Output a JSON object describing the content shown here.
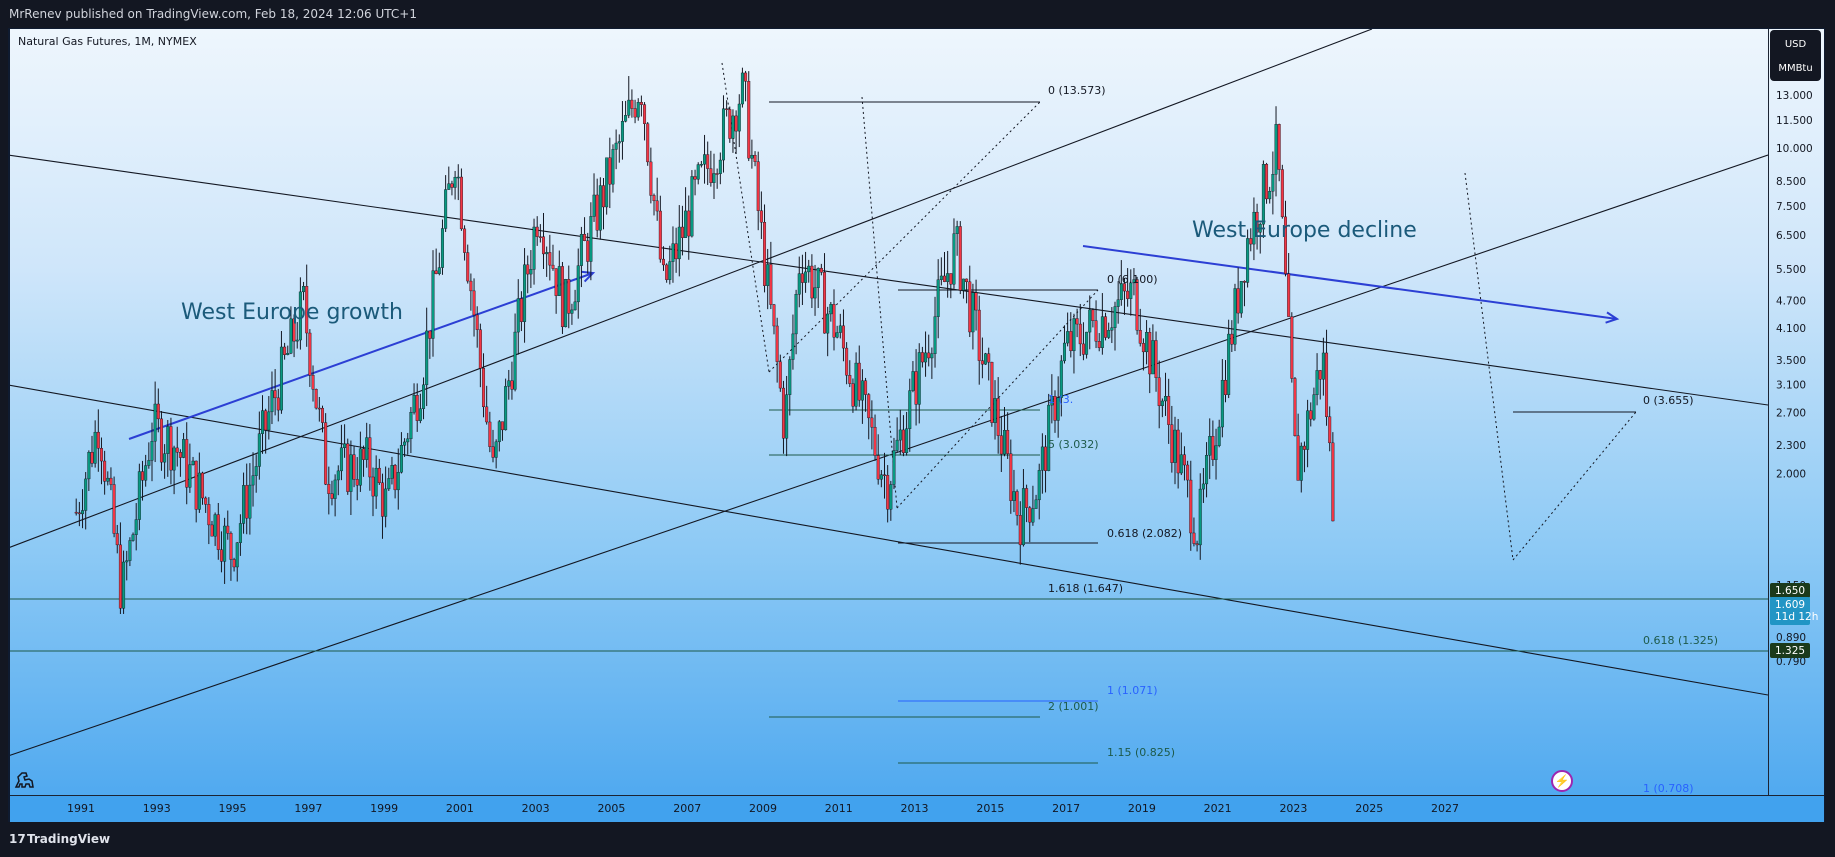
{
  "header": {
    "published": "MrRenev published on TradingView.com, Feb 18, 2024 12:06 UTC+1"
  },
  "footer": {
    "brand": "TradingView",
    "brand_icon": "tradingview-logo-icon"
  },
  "symbol": {
    "label": "Natural Gas Futures, 1M, NYMEX"
  },
  "unit": {
    "currency": "USD",
    "unit": "MMBtu"
  },
  "annotations": {
    "growth": "West Europe growth",
    "decline": "West Europe decline"
  },
  "price_axis": {
    "ticks": [
      "13.000",
      "11.500",
      "10.000",
      "8.500",
      "7.500",
      "6.500",
      "5.500",
      "4.700",
      "4.100",
      "3.500",
      "3.100",
      "2.700",
      "2.300",
      "2.000",
      "1.650",
      "1.609",
      "11d 12h",
      "1.325",
      "1.150",
      "1.010",
      "0.890",
      "0.790"
    ],
    "labels": {
      "price_high": "1.650",
      "price_current": "1.609",
      "countdown": "11d 12h",
      "price_low": "1.325"
    },
    "colors": {
      "price_high_bg": "#1b3a1b",
      "price_current_bg": "#2195c5",
      "price_low_bg": "#1b3a1b"
    }
  },
  "time_axis": {
    "ticks": [
      "1991",
      "1993",
      "1995",
      "1997",
      "1999",
      "2001",
      "2003",
      "2005",
      "2007",
      "2009",
      "2011",
      "2013",
      "2015",
      "2017",
      "2019",
      "2021",
      "2023",
      "2025",
      "2027"
    ]
  },
  "fib_labels": {
    "a0": "0 (13.573)",
    "b0": "0 (6.100)",
    "b1": "1 (3.",
    "b2": "5 (3.032)",
    "b618": "0.618 (2.082)",
    "b1618": "1.618 (1.647)",
    "b_1": "1 (1.071)",
    "b_2": "2 (1.001)",
    "b_115": "1.15 (0.825)",
    "c0": "0 (3.655)",
    "c618": "0.618 (1.325)",
    "c1": "1 (0.708)"
  },
  "icons": {
    "dino": "dino-icon",
    "bolt": "lightning-icon"
  },
  "chart_data": {
    "type": "candlestick",
    "title": "Natural Gas Futures, 1M, NYMEX",
    "xlabel": "",
    "ylabel": "",
    "x_range": [
      1990,
      2028
    ],
    "y_scale": "log",
    "ylim": [
      0.75,
      14.5
    ],
    "up_color": "#089981",
    "down_color": "#f23645",
    "grid": false,
    "series_ohlc_anchor_points": [
      {
        "x": 1990.9,
        "y": 1.65
      },
      {
        "x": 1991.5,
        "y": 2.6
      },
      {
        "x": 1992.1,
        "y": 1.1
      },
      {
        "x": 1992.9,
        "y": 2.5
      },
      {
        "x": 1993.5,
        "y": 2.3
      },
      {
        "x": 1995.0,
        "y": 1.35
      },
      {
        "x": 1996.0,
        "y": 2.7
      },
      {
        "x": 1996.9,
        "y": 4.6
      },
      {
        "x": 1997.5,
        "y": 2.0
      },
      {
        "x": 1998.6,
        "y": 2.1
      },
      {
        "x": 1999.1,
        "y": 1.7
      },
      {
        "x": 2000.0,
        "y": 3.2
      },
      {
        "x": 2000.9,
        "y": 9.8
      },
      {
        "x": 2001.9,
        "y": 2.0
      },
      {
        "x": 2003.1,
        "y": 7.5
      },
      {
        "x": 2003.8,
        "y": 4.5
      },
      {
        "x": 2005.8,
        "y": 14.0
      },
      {
        "x": 2006.4,
        "y": 5.0
      },
      {
        "x": 2007.2,
        "y": 7.8
      },
      {
        "x": 2008.5,
        "y": 13.5
      },
      {
        "x": 2009.6,
        "y": 2.5
      },
      {
        "x": 2010.0,
        "y": 5.9
      },
      {
        "x": 2011.0,
        "y": 4.0
      },
      {
        "x": 2012.3,
        "y": 1.9
      },
      {
        "x": 2014.1,
        "y": 6.2
      },
      {
        "x": 2015.8,
        "y": 1.6
      },
      {
        "x": 2016.3,
        "y": 1.9
      },
      {
        "x": 2017.0,
        "y": 3.7
      },
      {
        "x": 2018.8,
        "y": 4.9
      },
      {
        "x": 2020.5,
        "y": 1.5
      },
      {
        "x": 2021.8,
        "y": 6.3
      },
      {
        "x": 2022.6,
        "y": 10.0
      },
      {
        "x": 2023.1,
        "y": 2.0
      },
      {
        "x": 2023.8,
        "y": 3.6
      },
      {
        "x": 2024.1,
        "y": 1.609
      }
    ],
    "fib_levels": [
      {
        "label": "0 (13.573)",
        "value": 13.573
      },
      {
        "label": "0 (6.100)",
        "value": 6.1
      },
      {
        "label": "5 (3.032)",
        "value": 3.032
      },
      {
        "label": "0.618 (2.082)",
        "value": 2.082
      },
      {
        "label": "1.618 (1.647)",
        "value": 1.647
      },
      {
        "label": "1 (1.071)",
        "value": 1.071
      },
      {
        "label": "2 (1.001)",
        "value": 1.001
      },
      {
        "label": "1.15 (0.825)",
        "value": 0.825
      },
      {
        "label": "0 (3.655)",
        "value": 3.655
      },
      {
        "label": "0.618 (1.325)",
        "value": 1.325
      },
      {
        "label": "1 (0.708)",
        "value": 0.708
      }
    ]
  }
}
